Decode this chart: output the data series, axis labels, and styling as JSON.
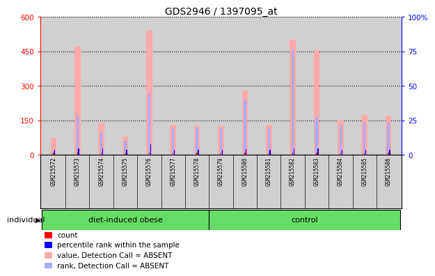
{
  "title": "GDS2946 / 1397095_at",
  "samples": [
    "GSM215572",
    "GSM215573",
    "GSM215574",
    "GSM215575",
    "GSM215576",
    "GSM215577",
    "GSM215578",
    "GSM215579",
    "GSM215580",
    "GSM215581",
    "GSM215582",
    "GSM215583",
    "GSM215584",
    "GSM215585",
    "GSM215586"
  ],
  "count_values": [
    10,
    12,
    10,
    8,
    10,
    9,
    9,
    9,
    10,
    9,
    10,
    9,
    9,
    9,
    9
  ],
  "rank_values": [
    22,
    29,
    27,
    21,
    46,
    22,
    21,
    22,
    25,
    22,
    29,
    28,
    22,
    23,
    23
  ],
  "absent_value": [
    75,
    470,
    140,
    80,
    540,
    130,
    125,
    125,
    280,
    130,
    500,
    455,
    150,
    175,
    170
  ],
  "absent_rank": [
    20,
    170,
    100,
    60,
    265,
    120,
    115,
    115,
    240,
    115,
    455,
    165,
    130,
    140,
    140
  ],
  "groups": [
    {
      "label": "diet-induced obese",
      "start": 0,
      "end": 7
    },
    {
      "label": "control",
      "start": 7,
      "end": 15
    }
  ],
  "group_color": "#66dd66",
  "ylim_left": [
    0,
    600
  ],
  "ylim_right": [
    0,
    100
  ],
  "yticks_left": [
    0,
    150,
    300,
    450,
    600
  ],
  "yticks_right": [
    0,
    25,
    50,
    75,
    100
  ],
  "ytick_labels_left": [
    "0",
    "150",
    "300",
    "450",
    "600"
  ],
  "ytick_labels_right": [
    "0",
    "25",
    "50",
    "75",
    "100%"
  ],
  "absent_bar_color": "#ffaaaa",
  "absent_rank_color": "#aaaaff",
  "count_color": "#ff0000",
  "rank_color": "#0000ff",
  "bg_color": "#d0d0d0",
  "white_bg": "#ffffff",
  "legend_items": [
    {
      "color": "#ff0000",
      "label": "count"
    },
    {
      "color": "#0000ff",
      "label": "percentile rank within the sample"
    },
    {
      "color": "#ffaaaa",
      "label": "value, Detection Call = ABSENT"
    },
    {
      "color": "#aaaaff",
      "label": "rank, Detection Call = ABSENT"
    }
  ]
}
